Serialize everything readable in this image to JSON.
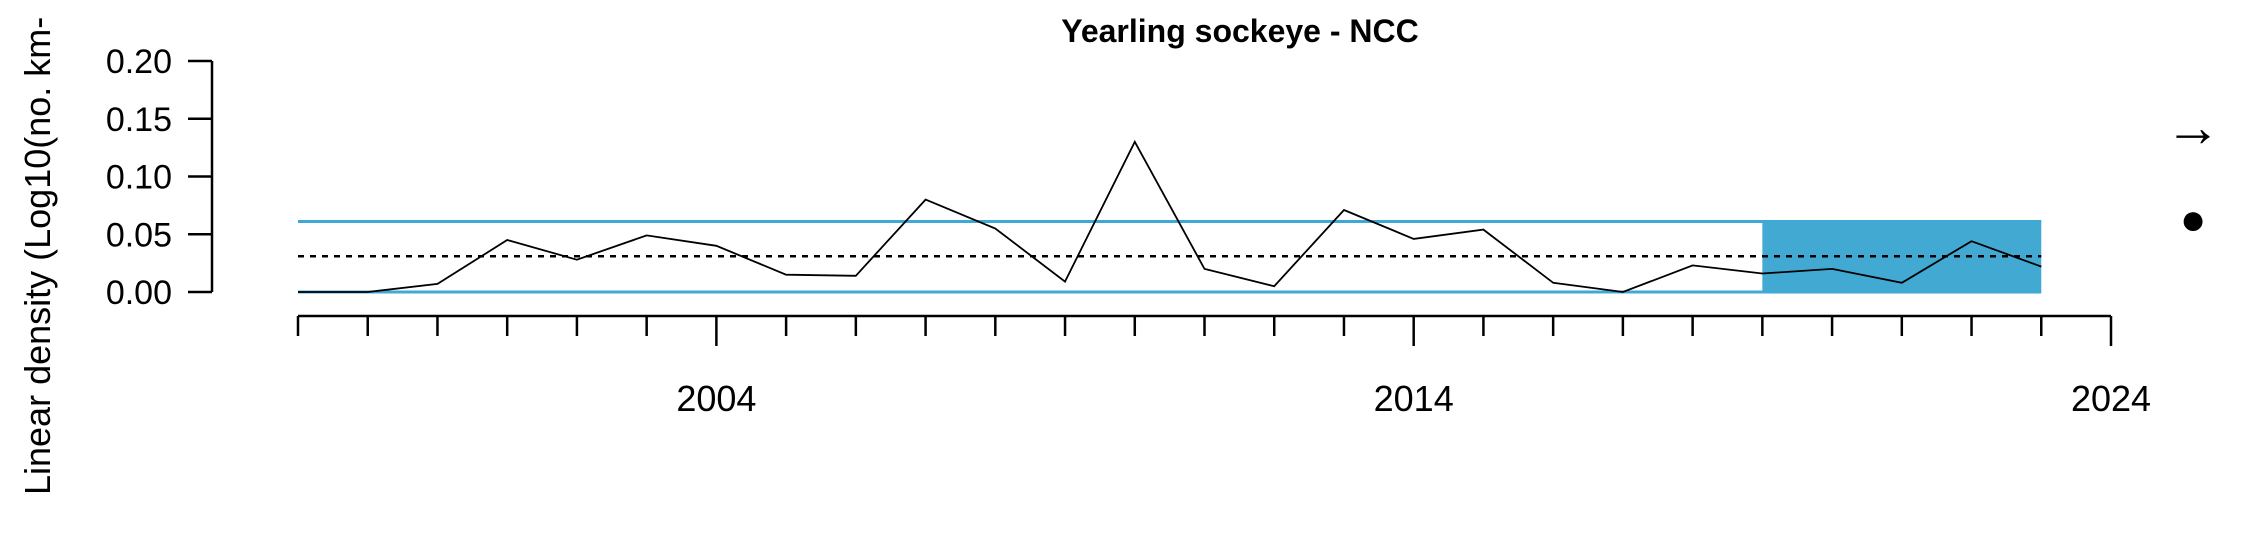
{
  "chart_data": {
    "type": "line",
    "title": "Yearling sockeye - NCC",
    "ylabel": "Linear density (Log10(no. km-",
    "xlabel": "",
    "x": [
      1998,
      1999,
      2000,
      2001,
      2002,
      2003,
      2004,
      2005,
      2006,
      2007,
      2008,
      2009,
      2010,
      2011,
      2012,
      2013,
      2014,
      2015,
      2016,
      2017,
      2018,
      2019,
      2020,
      2021,
      2022,
      2023
    ],
    "values": [
      0.0,
      0.0,
      0.007,
      0.045,
      0.028,
      0.049,
      0.04,
      0.015,
      0.014,
      0.08,
      0.055,
      0.009,
      0.13,
      0.02,
      0.005,
      0.071,
      0.046,
      0.054,
      0.008,
      0.0,
      0.023,
      0.016,
      0.02,
      0.008,
      0.044,
      0.022
    ],
    "xlim": [
      1998,
      2024
    ],
    "ylim": [
      0.0,
      0.2
    ],
    "y_ticks": [
      "0.00",
      "0.05",
      "0.10",
      "0.15",
      "0.20"
    ],
    "x_ticks": [
      "2004",
      "2014",
      "2024"
    ],
    "mean": 0.031,
    "upper_bound": 0.061,
    "lower_bound": 0.0,
    "highlight_range": [
      2019,
      2023
    ],
    "grid": false,
    "colors": {
      "line": "#000000",
      "bounds": "#3fa9d6",
      "highlight": "#42a9d3",
      "mean_line": "#000000"
    },
    "side_symbols": {
      "trend": "→",
      "status": "●"
    }
  }
}
